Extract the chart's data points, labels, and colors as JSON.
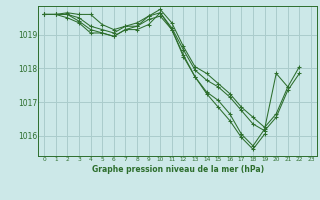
{
  "bg_color": "#cce8e8",
  "grid_color": "#aacccc",
  "line_color": "#2d6e2d",
  "marker_color": "#2d6e2d",
  "title": "Graphe pression niveau de la mer (hPa)",
  "xlim": [
    -0.5,
    23.5
  ],
  "ylim": [
    1015.4,
    1019.85
  ],
  "yticks": [
    1016,
    1017,
    1018,
    1019
  ],
  "xticks": [
    0,
    1,
    2,
    3,
    4,
    5,
    6,
    7,
    8,
    9,
    10,
    11,
    12,
    13,
    14,
    15,
    16,
    17,
    18,
    19,
    20,
    21,
    22,
    23
  ],
  "series": [
    [
      1019.6,
      1019.6,
      1019.65,
      1019.6,
      1019.6,
      1019.3,
      1019.15,
      1019.25,
      1019.35,
      1019.55,
      1019.65,
      1019.15,
      1018.4,
      1017.75,
      1017.3,
      1017.05,
      1016.65,
      1016.05,
      1015.7,
      1016.2,
      1017.85,
      1017.45,
      null,
      null
    ],
    [
      1019.6,
      1019.6,
      1019.5,
      1019.35,
      1019.05,
      1019.05,
      1018.95,
      1019.15,
      1019.25,
      1019.45,
      1019.55,
      1019.15,
      1018.35,
      1017.75,
      1017.25,
      1016.85,
      1016.45,
      1015.95,
      1015.6,
      1016.05,
      null,
      null,
      null,
      null
    ],
    [
      1019.6,
      1019.6,
      1019.6,
      1019.4,
      1019.15,
      1019.05,
      1018.95,
      1019.15,
      1019.15,
      1019.3,
      1019.65,
      1019.2,
      1018.55,
      1017.95,
      1017.65,
      1017.45,
      1017.15,
      1016.75,
      1016.35,
      1016.15,
      1016.55,
      1017.35,
      1017.85,
      null
    ],
    [
      1019.6,
      1019.6,
      1019.6,
      1019.5,
      1019.25,
      1019.15,
      1019.05,
      1019.25,
      1019.25,
      1019.55,
      1019.75,
      1019.35,
      1018.65,
      1018.05,
      1017.85,
      1017.55,
      1017.25,
      1016.85,
      1016.55,
      1016.25,
      1016.65,
      1017.45,
      1018.05,
      null
    ]
  ]
}
